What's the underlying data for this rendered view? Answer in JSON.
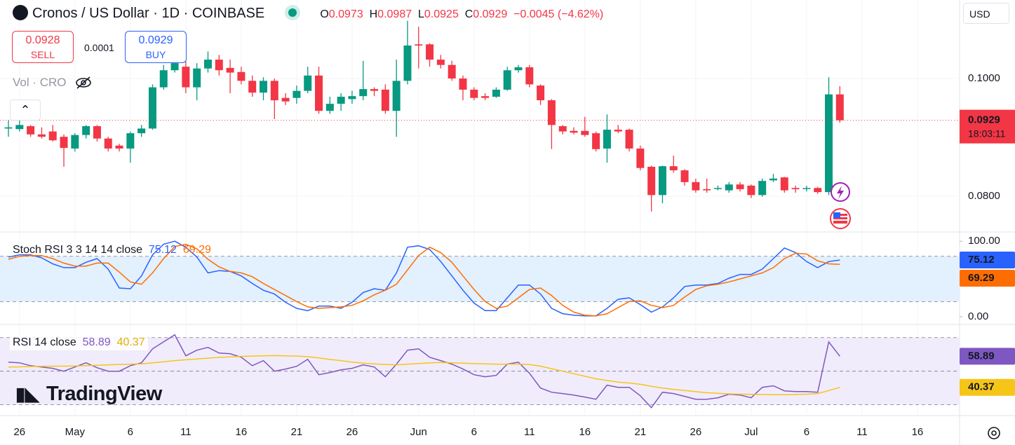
{
  "header": {
    "symbol": "Cronos / US Dollar · 1D · COINBASE",
    "ohlc": [
      {
        "label": "O",
        "value": 0.0973
      },
      {
        "label": "H",
        "value": 0.0987
      },
      {
        "label": "L",
        "value": 0.0925
      },
      {
        "label": "C",
        "value": 0.0929
      }
    ],
    "change": {
      "value": -0.0045,
      "label": "−0.0045"
    },
    "change_pct": {
      "value": -4.62,
      "label": "(−4.62%)"
    }
  },
  "trade": {
    "sell_price": 0.0928,
    "sell_label": "SELL",
    "spread": 0.0001,
    "buy_price": 0.0929,
    "buy_label": "BUY"
  },
  "volume_label": "Vol · CRO",
  "currency": "USD",
  "logo": "TradingView",
  "chart_data": [
    {
      "type": "candlestick",
      "countdown": "18:03:11",
      "grid": true,
      "up_color": "#089981",
      "down_color": "#f23645",
      "categories": [
        null,
        null,
        null,
        null,
        null,
        null,
        null,
        null,
        null,
        null,
        null,
        null,
        null,
        null,
        null,
        null,
        null,
        null,
        null,
        null,
        null,
        null,
        null,
        null,
        null,
        null,
        null,
        null,
        null,
        null,
        null,
        null,
        null,
        null,
        null,
        null,
        null,
        null,
        null,
        null,
        null,
        null,
        null,
        null,
        null,
        null,
        null,
        null,
        null,
        null,
        null,
        null,
        null,
        null,
        null,
        null,
        null,
        null,
        null,
        null,
        null,
        null,
        null,
        null,
        null,
        null,
        null,
        null,
        null,
        null,
        null,
        null,
        null,
        null,
        null,
        null
      ],
      "xlim": [
        -0.76,
        85.8
      ],
      "xticks": [
        {
          "value": 1,
          "label": "26"
        },
        {
          "value": 6,
          "label": "May"
        },
        {
          "value": 11,
          "label": "6"
        },
        {
          "value": 16,
          "label": "11"
        },
        {
          "value": 21,
          "label": "16"
        },
        {
          "value": 26,
          "label": "21"
        },
        {
          "value": 31,
          "label": "26"
        },
        {
          "value": 37,
          "label": "Jun"
        },
        {
          "value": 42,
          "label": "6"
        },
        {
          "value": 47,
          "label": "11"
        },
        {
          "value": 52,
          "label": "16"
        },
        {
          "value": 57,
          "label": "21"
        },
        {
          "value": 62,
          "label": "26"
        },
        {
          "value": 67,
          "label": "Jul"
        },
        {
          "value": 72,
          "label": "6"
        },
        {
          "value": 77,
          "label": "11"
        },
        {
          "value": 82,
          "label": "16"
        }
      ],
      "ylim": [
        0.07405,
        0.11333
      ],
      "yticks": [
        {
          "value": 0.1,
          "label": "0.1000"
        },
        {
          "value": 0.08,
          "label": "0.0800"
        }
      ],
      "open": [
        0.0915,
        0.0914,
        0.0919,
        0.0905,
        0.091,
        0.0901,
        0.0881,
        0.0904,
        0.0919,
        0.0898,
        0.0886,
        0.0881,
        0.0907,
        0.0915,
        0.0985,
        0.1014,
        0.102,
        0.0985,
        0.1017,
        0.1032,
        0.1018,
        0.1011,
        0.0996,
        0.0976,
        0.0996,
        0.0967,
        0.0967,
        0.0979,
        0.1005,
        0.0945,
        0.0957,
        0.0965,
        0.097,
        0.0982,
        0.0981,
        0.0945,
        0.0996,
        0.1058,
        0.1058,
        0.1032,
        0.1023,
        0.1,
        0.0981,
        0.097,
        0.0969,
        0.0981,
        0.1014,
        0.1019,
        0.0988,
        0.0963,
        0.0919,
        0.0911,
        0.0911,
        0.0907,
        0.0881,
        0.0913,
        0.0913,
        0.0881,
        0.085,
        0.0802,
        0.0851,
        0.0844,
        0.0824,
        0.0812,
        0.0813,
        0.081,
        0.082,
        0.0818,
        0.0802,
        0.0827,
        0.0832,
        0.0814,
        0.0813,
        0.0814,
        0.0807,
        0.0973
      ],
      "high": [
        0.0929,
        0.0929,
        0.0921,
        0.0917,
        0.0921,
        0.0905,
        0.0907,
        0.0921,
        0.0921,
        0.0901,
        0.0889,
        0.091,
        0.0921,
        0.099,
        0.1023,
        0.1046,
        0.1048,
        0.1026,
        0.1046,
        0.104,
        0.1032,
        0.102,
        0.1005,
        0.1002,
        0.1,
        0.0975,
        0.0988,
        0.102,
        0.102,
        0.0969,
        0.0975,
        0.0979,
        0.103,
        0.0985,
        0.099,
        0.1032,
        0.1098,
        0.1088,
        0.106,
        0.104,
        0.103,
        0.1005,
        0.0985,
        0.0975,
        0.0985,
        0.102,
        0.1023,
        0.1023,
        0.099,
        0.0965,
        0.0921,
        0.0917,
        0.0935,
        0.091,
        0.0939,
        0.0921,
        0.0915,
        0.0886,
        0.0852,
        0.0852,
        0.0869,
        0.0846,
        0.083,
        0.083,
        0.0818,
        0.0824,
        0.0824,
        0.082,
        0.083,
        0.0838,
        0.0833,
        0.0818,
        0.0818,
        0.0816,
        0.1002,
        0.0987
      ],
      "low": [
        0.0901,
        0.091,
        0.0901,
        0.0898,
        0.0893,
        0.085,
        0.0876,
        0.0898,
        0.0893,
        0.0876,
        0.0876,
        0.0857,
        0.0901,
        0.0913,
        0.0981,
        0.101,
        0.0975,
        0.0963,
        0.101,
        0.1005,
        0.0975,
        0.099,
        0.0969,
        0.0963,
        0.0931,
        0.0955,
        0.0957,
        0.0975,
        0.094,
        0.094,
        0.0945,
        0.0957,
        0.0963,
        0.097,
        0.094,
        0.0901,
        0.099,
        0.1017,
        0.102,
        0.1017,
        0.0996,
        0.0963,
        0.0963,
        0.0963,
        0.0967,
        0.0979,
        0.101,
        0.0985,
        0.0955,
        0.088,
        0.0905,
        0.0905,
        0.0901,
        0.0876,
        0.0857,
        0.0907,
        0.0876,
        0.0844,
        0.0774,
        0.0788,
        0.084,
        0.0818,
        0.0806,
        0.0806,
        0.081,
        0.0806,
        0.0808,
        0.0797,
        0.0799,
        0.0824,
        0.0806,
        0.0806,
        0.0808,
        0.0804,
        0.0802,
        0.0925
      ],
      "close": [
        0.0917,
        0.0921,
        0.0905,
        0.0901,
        0.0895,
        0.0882,
        0.0904,
        0.0919,
        0.0898,
        0.0881,
        0.0881,
        0.0907,
        0.0915,
        0.0985,
        0.1014,
        0.1026,
        0.0985,
        0.1017,
        0.1032,
        0.1014,
        0.101,
        0.0996,
        0.0976,
        0.0996,
        0.0963,
        0.0961,
        0.0979,
        0.1005,
        0.0945,
        0.0957,
        0.0969,
        0.097,
        0.0982,
        0.0979,
        0.0945,
        0.0996,
        0.1056,
        0.1056,
        0.1032,
        0.1023,
        0.1,
        0.0981,
        0.0967,
        0.0967,
        0.0981,
        0.1014,
        0.1019,
        0.099,
        0.0963,
        0.0921,
        0.091,
        0.0908,
        0.0904,
        0.088,
        0.0913,
        0.091,
        0.0881,
        0.0848,
        0.0802,
        0.0851,
        0.0844,
        0.0824,
        0.081,
        0.081,
        0.0814,
        0.082,
        0.0812,
        0.0802,
        0.0826,
        0.083,
        0.081,
        0.0812,
        0.0814,
        0.0807,
        0.0973,
        0.0929
      ]
    },
    {
      "type": "line",
      "title": "Stoch RSI 3 3 14 14 close",
      "ylim": [
        -9.4,
        110.4
      ],
      "yticks": [
        {
          "value": 100,
          "label": "100.00"
        },
        {
          "value": 0,
          "label": "0.00"
        }
      ],
      "levels": [
        80,
        20
      ],
      "band_color": "#e3f0fd",
      "series": [
        {
          "color": "#2962ff",
          "values": [
            79,
            82,
            82,
            78,
            70,
            65,
            65,
            72,
            77,
            63,
            38,
            37,
            54,
            82,
            96,
            100,
            92,
            79,
            58,
            61,
            60,
            54,
            44,
            35,
            30,
            19,
            11,
            8,
            14,
            14,
            11,
            19,
            32,
            37,
            35,
            58,
            92,
            94,
            89,
            73,
            54,
            35,
            18,
            8,
            8,
            25,
            42,
            42,
            30,
            11,
            4,
            2,
            1,
            1,
            11,
            23,
            25,
            16,
            6,
            13,
            25,
            40,
            42,
            42,
            44,
            51,
            56,
            56,
            63,
            77,
            91,
            85,
            73,
            65,
            73,
            75.12
          ]
        },
        {
          "color": "#ff6d00",
          "values": [
            76,
            80,
            81,
            81,
            77,
            71,
            67,
            67,
            71,
            71,
            59,
            46,
            43,
            58,
            77,
            93,
            96,
            90,
            76,
            66,
            60,
            58,
            53,
            44,
            36,
            28,
            20,
            13,
            11,
            12,
            13,
            15,
            21,
            29,
            35,
            43,
            62,
            81,
            92,
            85,
            72,
            54,
            36,
            20,
            11,
            14,
            25,
            36,
            38,
            28,
            15,
            6,
            2,
            1,
            4,
            12,
            20,
            21,
            15,
            12,
            15,
            26,
            36,
            41,
            43,
            46,
            50,
            54,
            58,
            65,
            77,
            84,
            83,
            74,
            70,
            69.29
          ]
        }
      ]
    },
    {
      "type": "line",
      "title": "RSI 14 close",
      "ylim": [
        24,
        77
      ],
      "levels": [
        70,
        50,
        30
      ],
      "band_color": "#f1ecfb",
      "series": [
        {
          "color": "#7e57c2",
          "values": [
            55.4,
            55,
            53.3,
            52.5,
            51.7,
            50,
            52.5,
            55,
            52.1,
            50,
            50,
            53.3,
            55,
            63.3,
            67.5,
            71.7,
            59.2,
            62.5,
            64.2,
            60.8,
            60.4,
            58.3,
            53.3,
            56.3,
            50,
            51.3,
            52.9,
            57.1,
            47.9,
            49.2,
            50.8,
            51.7,
            53.8,
            52.5,
            46.7,
            54.2,
            62.5,
            63.3,
            58.3,
            56.3,
            54.2,
            51.3,
            47.9,
            46.7,
            47.5,
            54.2,
            55.4,
            48.8,
            40,
            37.5,
            36.7,
            35.8,
            34.6,
            33.3,
            41.7,
            40.4,
            40.4,
            35.4,
            28.3,
            37.5,
            36.7,
            35,
            33.3,
            33.3,
            34.2,
            36.3,
            35.8,
            34.2,
            40.4,
            41.3,
            38.3,
            37.9,
            37.9,
            37.5,
            67.5,
            58.89
          ]
        },
        {
          "color": "#f5c518",
          "values": [
            52.5,
            52.6,
            52.8,
            52.9,
            53,
            53,
            53.1,
            53.3,
            53.5,
            53.8,
            54,
            54.2,
            54.4,
            55,
            55.6,
            56.3,
            56.8,
            57.3,
            57.8,
            58.2,
            58.5,
            58.8,
            59,
            59.2,
            59.3,
            59.2,
            59,
            58.7,
            57.9,
            57,
            56.3,
            55.4,
            54.8,
            54.4,
            54,
            53.8,
            54.2,
            54.6,
            55,
            55.2,
            55,
            54.8,
            54.6,
            54.4,
            54.2,
            54.2,
            54.2,
            54,
            53,
            51.5,
            50,
            48.5,
            47,
            45.5,
            44.5,
            43.5,
            43,
            42.2,
            41,
            40,
            39.2,
            38.5,
            37.8,
            37.2,
            36.8,
            36.5,
            36.3,
            36.2,
            36.1,
            36,
            36,
            36.1,
            36.3,
            36.7,
            38.5,
            40.37
          ]
        }
      ]
    }
  ]
}
